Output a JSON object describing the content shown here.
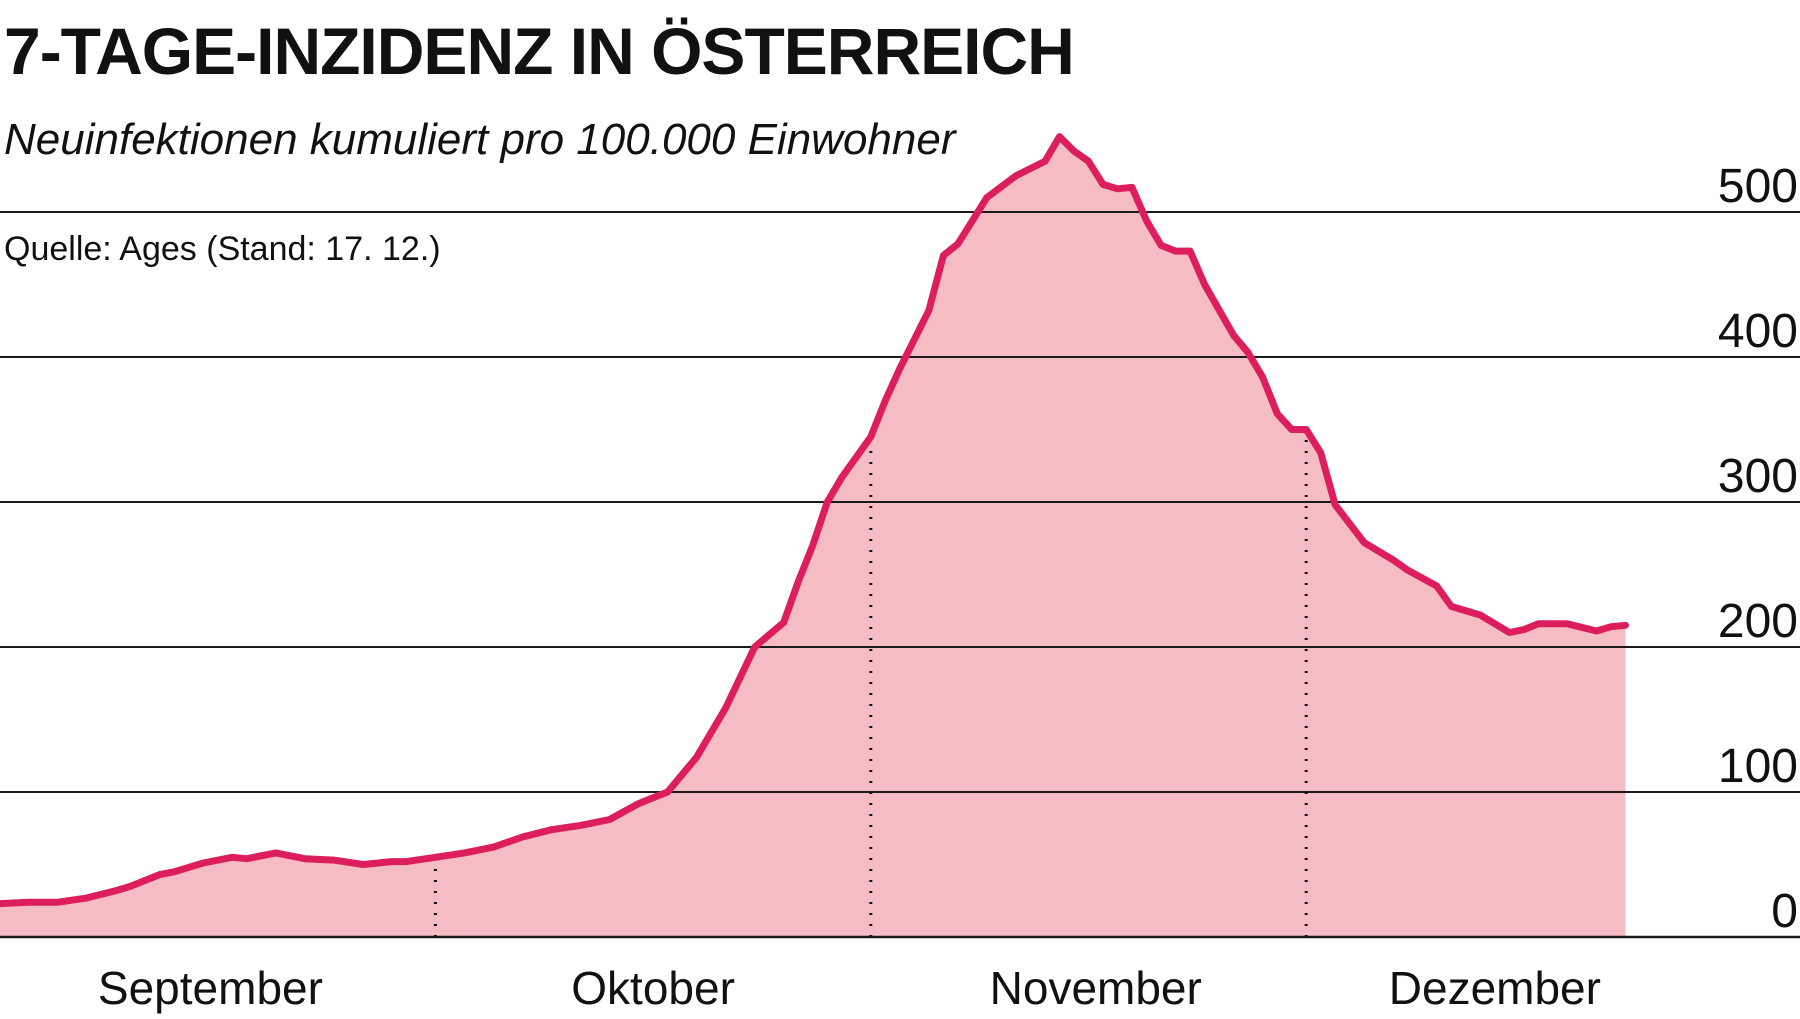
{
  "title": "7-TAGE-INZIDENZ IN ÖSTERREICH",
  "subtitle": "Neuinfektionen kumuliert pro 100.000 Einwohner",
  "source": "Quelle: Ages (Stand: 17. 12.)",
  "colors": {
    "line": "#dc1f5c",
    "area": "#f5bcc4",
    "grid": "#1a1a1a",
    "text": "#111111"
  },
  "chart_data": {
    "type": "area",
    "xlabel": "",
    "ylabel": "",
    "ylim": [
      0,
      560
    ],
    "yticks": [
      0,
      100,
      200,
      300,
      400,
      500
    ],
    "ytick_labels": [
      "0",
      "100",
      "200",
      "300",
      "400",
      "500"
    ],
    "grid": true,
    "month_labels": [
      {
        "label": "September",
        "x": 14.5
      },
      {
        "label": "Oktober",
        "x": 45
      },
      {
        "label": "November",
        "x": 75.5
      },
      {
        "label": "Dezember",
        "x": 103
      }
    ],
    "month_separators": [
      30,
      60,
      90
    ],
    "x_range": [
      0,
      113
    ],
    "series": [
      {
        "x": [
          0,
          2,
          4,
          6,
          8,
          9,
          11,
          12,
          14,
          16,
          17,
          19,
          21,
          23,
          25,
          27,
          28,
          30,
          32,
          34,
          36,
          38,
          40,
          42,
          44,
          45,
          46,
          48,
          50,
          52,
          54,
          55,
          56,
          57,
          58,
          60,
          61,
          62,
          64,
          65,
          66,
          67,
          68,
          70,
          72,
          73,
          74,
          75,
          76,
          77,
          78,
          79,
          80,
          81,
          82,
          83,
          85,
          86,
          87,
          88,
          89,
          90,
          91,
          92,
          94,
          96,
          97,
          99,
          100,
          102,
          104,
          105,
          106,
          108,
          110,
          111,
          112
        ],
        "values": [
          23,
          24,
          24,
          27,
          32,
          35,
          43,
          45,
          51,
          55,
          54,
          58,
          54,
          53,
          50,
          52,
          52,
          55,
          58,
          62,
          69,
          74,
          77,
          81,
          92,
          96,
          100,
          124,
          158,
          200,
          217,
          245,
          270,
          300,
          317,
          345,
          370,
          392,
          432,
          470,
          478,
          494,
          510,
          525,
          535,
          552,
          542,
          535,
          519,
          516,
          517,
          494,
          477,
          473,
          473,
          450,
          415,
          403,
          386,
          361,
          350,
          350,
          334,
          298,
          272,
          260,
          253,
          242,
          228,
          222,
          210,
          212,
          216,
          216,
          211,
          214,
          215
        ]
      }
    ]
  }
}
